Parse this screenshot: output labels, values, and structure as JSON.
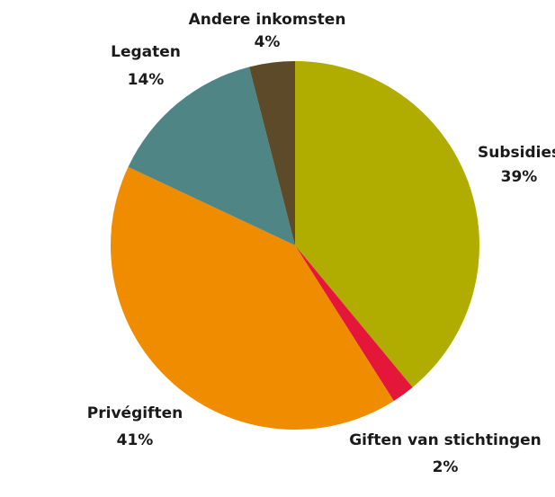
{
  "chart_data": {
    "type": "pie",
    "categories": [
      "Subsidies",
      "Giften van stichtingen",
      "Privégiften",
      "Legaten",
      "Andere inkomsten"
    ],
    "values": [
      39,
      2,
      41,
      14,
      4
    ],
    "value_labels": [
      "39%",
      "2%",
      "41%",
      "14%",
      "4%"
    ],
    "colors": [
      "#b0ac00",
      "#e4173a",
      "#f08c00",
      "#4f8585",
      "#5c4a28"
    ]
  }
}
